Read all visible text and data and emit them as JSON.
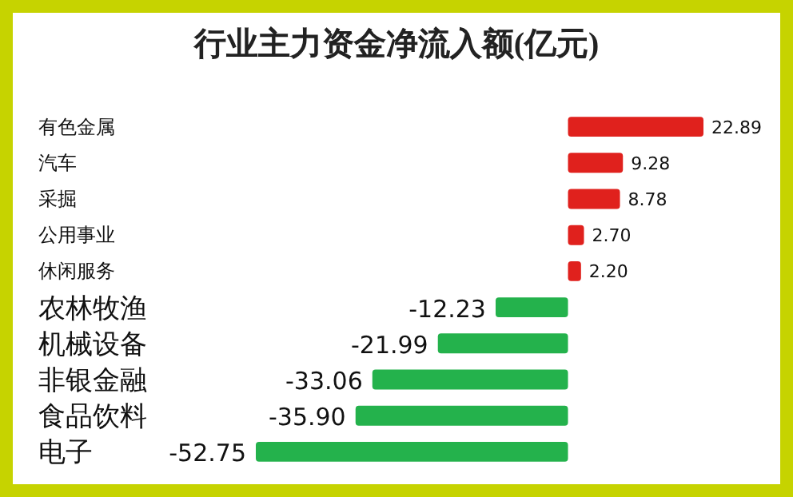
{
  "chart_data": {
    "type": "bar",
    "orientation": "horizontal",
    "title": "行业主力资金净流入额(亿元)",
    "categories": [
      "有色金属",
      "汽车",
      "采掘",
      "公用事业",
      "休闲服务",
      "农林牧渔",
      "机械设备",
      "非银金融",
      "食品饮料",
      "电子"
    ],
    "values": [
      22.89,
      9.28,
      8.78,
      2.7,
      2.2,
      -12.23,
      -21.99,
      -33.06,
      -35.9,
      -52.75
    ],
    "value_labels": [
      "22.89",
      "9.28",
      "8.78",
      "2.70",
      "2.20",
      "-12.23",
      "-21.99",
      "-33.06",
      "-35.90",
      "-52.75"
    ],
    "colors": [
      "#e0211d",
      "#e0211d",
      "#e0211d",
      "#e0211d",
      "#e0211d",
      "#24b24c",
      "#24b24c",
      "#24b24c",
      "#24b24c",
      "#24b24c"
    ]
  }
}
